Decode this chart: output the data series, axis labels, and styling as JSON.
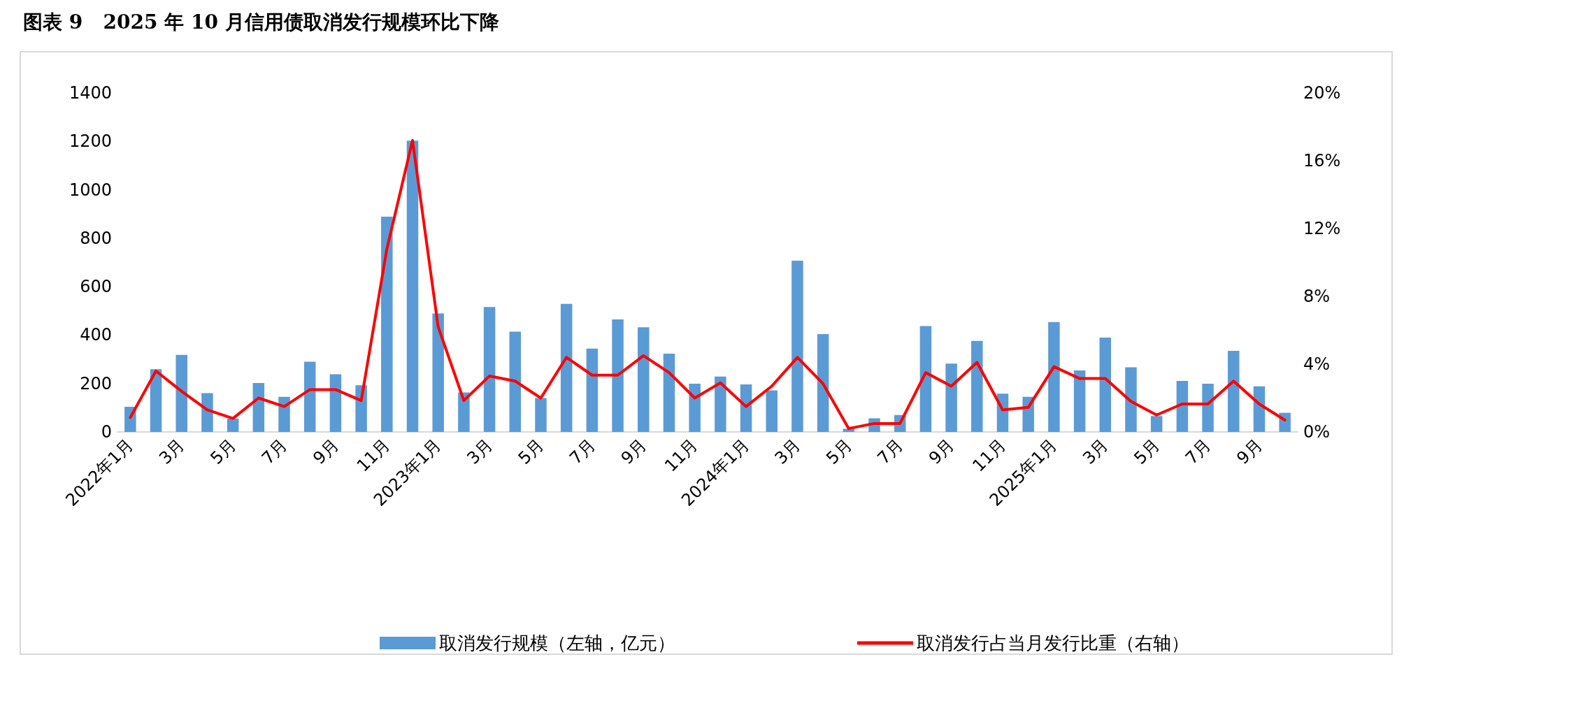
{
  "chart_data": {
    "type": "bar",
    "title": "图表 9   2025 年 10 月信用债取消发行规模环比下降",
    "categories": [
      "2022年1月",
      null,
      "3月",
      null,
      "5月",
      null,
      "7月",
      null,
      "9月",
      null,
      "11月",
      null,
      "2023年1月",
      null,
      "3月",
      null,
      "5月",
      null,
      "7月",
      null,
      "9月",
      null,
      "11月",
      null,
      "2024年1月",
      null,
      "3月",
      null,
      "5月",
      null,
      "7月",
      null,
      "9月",
      null,
      "11月",
      null,
      "2025年1月",
      null,
      "3月",
      null,
      "5月",
      null,
      "7月",
      null,
      "9月",
      null
    ],
    "series": [
      {
        "name": "取消发行规模（左轴，亿元）",
        "color": "#5b9bd5",
        "values": [
          104,
          259,
          318,
          160,
          55,
          202,
          145,
          290,
          238,
          193,
          889,
          1203,
          489,
          163,
          516,
          414,
          140,
          529,
          344,
          465,
          432,
          323,
          199,
          229,
          196,
          172,
          707,
          404,
          13,
          56,
          70,
          437,
          282,
          376,
          158,
          145,
          454,
          254,
          390,
          267,
          66,
          211,
          199,
          335,
          188,
          79
        ]
      },
      {
        "name": "取消发行占当月发行比重（右轴）",
        "type": "line",
        "axis": "y2",
        "color": "#ff0000",
        "values": [
          0.85,
          3.6,
          2.4,
          1.3,
          0.8,
          2.0,
          1.5,
          2.5,
          2.5,
          1.85,
          10.8,
          17.2,
          6.2,
          1.85,
          3.3,
          3.0,
          2.0,
          4.4,
          3.35,
          3.35,
          4.5,
          3.5,
          2.0,
          2.9,
          1.5,
          2.7,
          4.4,
          2.85,
          0.2,
          0.5,
          0.5,
          3.5,
          2.7,
          4.1,
          1.3,
          1.45,
          3.85,
          3.15,
          3.15,
          1.8,
          1.0,
          1.65,
          1.65,
          3.0,
          1.65,
          0.7
        ]
      }
    ],
    "ylim": [
      0,
      1400
    ],
    "yticks": [
      0,
      200,
      400,
      600,
      800,
      1000,
      1200,
      1400
    ],
    "y2lim": [
      0,
      20
    ],
    "y2ticks": [
      {
        "value": 0,
        "label": "0%"
      },
      {
        "value": 4,
        "label": "4%"
      },
      {
        "value": 8,
        "label": "8%"
      },
      {
        "value": 12,
        "label": "12%"
      },
      {
        "value": 16,
        "label": "16%"
      },
      {
        "value": 20,
        "label": "20%"
      }
    ],
    "legend": "bottom",
    "grid": false,
    "marker": "none",
    "line_style": "solid"
  }
}
